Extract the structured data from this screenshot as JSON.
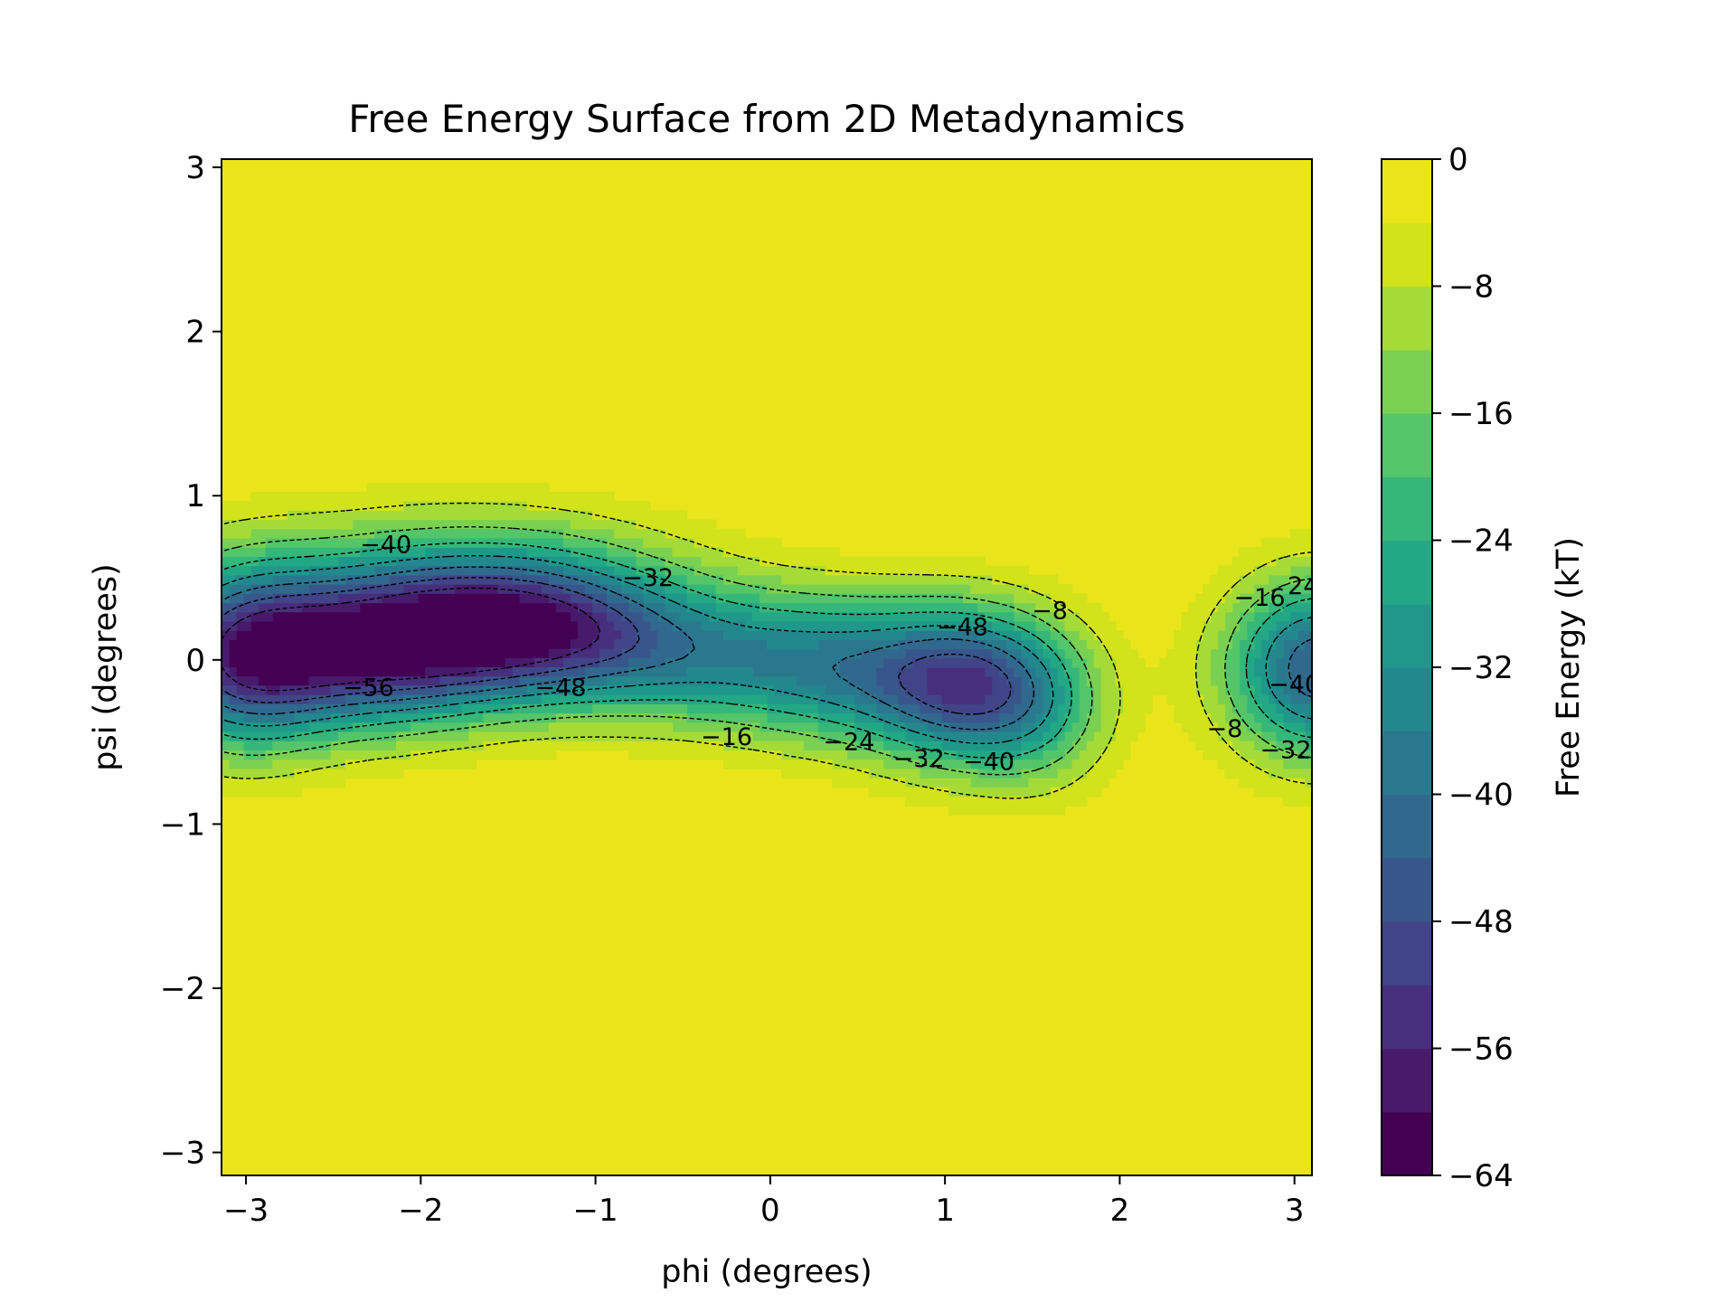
{
  "chart_data": {
    "type": "heatmap",
    "title": "Free Energy Surface from 2D Metadynamics",
    "xlabel": "phi (degrees)",
    "ylabel": "psi (degrees)",
    "xlim": [
      -3.14,
      3.1
    ],
    "ylim": [
      -3.14,
      3.05
    ],
    "x_ticks": [
      "−3",
      "−2",
      "−1",
      "0",
      "1",
      "2",
      "3"
    ],
    "x_tick_values": [
      -3,
      -2,
      -1,
      0,
      1,
      2,
      3
    ],
    "y_ticks": [
      "−3",
      "−2",
      "−1",
      "0",
      "1",
      "2",
      "3"
    ],
    "y_tick_values": [
      -3,
      -2,
      -1,
      0,
      1,
      2,
      3
    ],
    "colorbar": {
      "label": "Free Energy (kT)",
      "min": -64,
      "max": 0,
      "levels": [
        -64,
        -60,
        -56,
        -52,
        -48,
        -44,
        -40,
        -36,
        -32,
        -28,
        -24,
        -20,
        -16,
        -12,
        -8,
        -4,
        0
      ],
      "ticks": [
        "0",
        "−8",
        "−16",
        "−24",
        "−32",
        "−40",
        "−48",
        "−56",
        "−64"
      ],
      "tick_values": [
        0,
        -8,
        -16,
        -24,
        -32,
        -40,
        -48,
        -56,
        -64
      ],
      "colors": [
        "#440154",
        "#481a6c",
        "#472f7d",
        "#414487",
        "#39568c",
        "#31688e",
        "#2a788e",
        "#23888e",
        "#1f988b",
        "#22a884",
        "#35b779",
        "#54c568",
        "#7ad151",
        "#a5db36",
        "#d2e21b",
        "#eae51a"
      ]
    },
    "basins": [
      {
        "phi": -2.45,
        "psi": 0.05,
        "depth": -62
      },
      {
        "phi": -1.45,
        "psi": 0.2,
        "depth": -61
      },
      {
        "phi": 1.1,
        "psi": -0.15,
        "depth": -52
      },
      {
        "phi": 3.1,
        "psi": -0.1,
        "depth": -42
      }
    ],
    "contour_labels": [
      {
        "text": "−40",
        "phi": -2.2,
        "psi": 0.7
      },
      {
        "text": "−32",
        "phi": -0.7,
        "psi": 0.5
      },
      {
        "text": "−56",
        "phi": -2.3,
        "psi": -0.17
      },
      {
        "text": "−48",
        "phi": -1.2,
        "psi": -0.17
      },
      {
        "text": "−16",
        "phi": -0.25,
        "psi": -0.47
      },
      {
        "text": "−24",
        "phi": 0.45,
        "psi": -0.5
      },
      {
        "text": "−32",
        "phi": 0.85,
        "psi": -0.6
      },
      {
        "text": "−40",
        "phi": 1.25,
        "psi": -0.62
      },
      {
        "text": "−48",
        "phi": 1.1,
        "psi": 0.2
      },
      {
        "text": "−8",
        "phi": 1.6,
        "psi": 0.3
      },
      {
        "text": "−16",
        "phi": 2.8,
        "psi": 0.38
      },
      {
        "text": "24",
        "phi": 3.05,
        "psi": 0.45
      },
      {
        "text": "−8",
        "phi": 2.6,
        "psi": -0.42
      },
      {
        "text": "−40",
        "phi": 3.0,
        "psi": -0.15
      },
      {
        "text": "−32",
        "phi": 2.95,
        "psi": -0.55
      }
    ]
  }
}
